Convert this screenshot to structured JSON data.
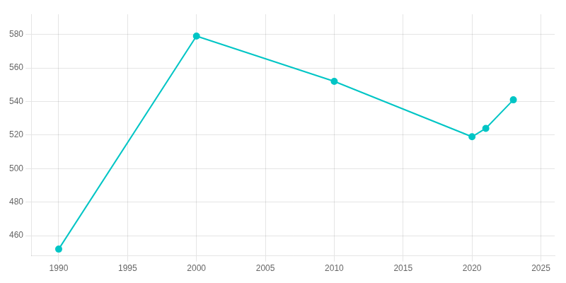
{
  "chart_data": {
    "type": "line",
    "x": [
      1990,
      2000,
      2010,
      2020,
      2021,
      2023
    ],
    "values": [
      452,
      579,
      552,
      519,
      524,
      541
    ],
    "color": "#00C5C5",
    "marker": "circle",
    "xlim": [
      1988,
      2026
    ],
    "ylim": [
      448,
      592
    ],
    "xticks": [
      1990,
      1995,
      2000,
      2005,
      2010,
      2015,
      2020,
      2025
    ],
    "yticks": [
      460,
      480,
      500,
      520,
      540,
      560,
      580
    ],
    "grid": true
  }
}
